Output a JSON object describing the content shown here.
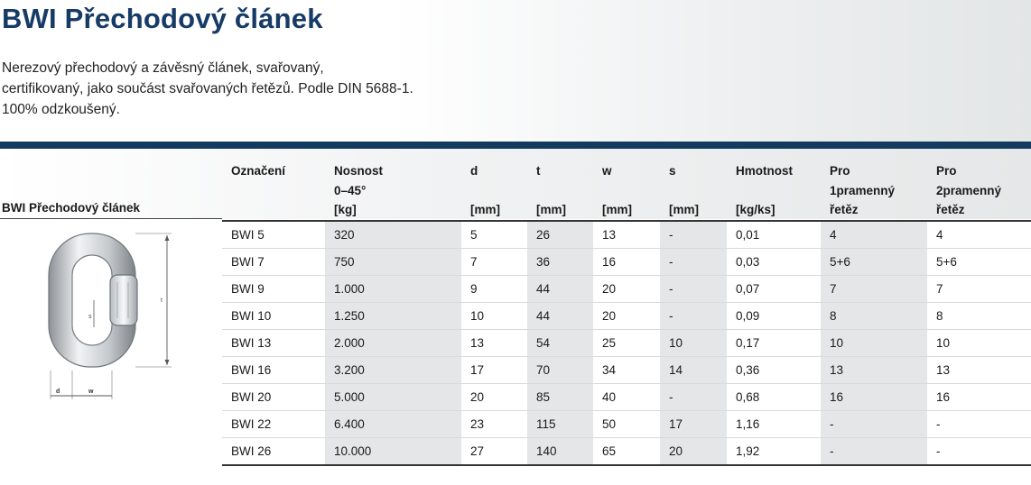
{
  "header": {
    "title": "BWI Přechodový článek",
    "description_lines": [
      "Nerezový přechodový a závěsný článek, svařovaný,",
      "certifikovaný, jako součást svařovaných řetězů. Podle DIN 5688-1.",
      "100% odzkoušený."
    ]
  },
  "product": {
    "label": "BWI Přechodový článek",
    "image_icon": "chain-link-drawing",
    "dim_labels": {
      "t": "t",
      "s": "s",
      "d": "d",
      "w": "w"
    }
  },
  "table": {
    "columns": [
      [
        "Označení",
        "",
        ""
      ],
      [
        "Nosnost",
        "0–45°",
        "[kg]"
      ],
      [
        "d",
        "",
        "[mm]"
      ],
      [
        "t",
        "",
        "[mm]"
      ],
      [
        "w",
        "",
        "[mm]"
      ],
      [
        "s",
        "",
        "[mm]"
      ],
      [
        "Hmotnost",
        "",
        "[kg/ks]"
      ],
      [
        "Pro",
        "1pramenný",
        "řetěz"
      ],
      [
        "Pro",
        "2pramenný",
        "řetěz"
      ]
    ],
    "rows": [
      [
        "BWI 5",
        "320",
        "5",
        "26",
        "13",
        "-",
        "0,01",
        "4",
        "4"
      ],
      [
        "BWI 7",
        "750",
        "7",
        "36",
        "16",
        "-",
        "0,03",
        "5+6",
        "5+6"
      ],
      [
        "BWI 9",
        "1.000",
        "9",
        "44",
        "20",
        "-",
        "0,07",
        "7",
        "7"
      ],
      [
        "BWI 10",
        "1.250",
        "10",
        "44",
        "20",
        "-",
        "0,09",
        "8",
        "8"
      ],
      [
        "BWI 13",
        "2.000",
        "13",
        "54",
        "25",
        "10",
        "0,17",
        "10",
        "10"
      ],
      [
        "BWI 16",
        "3.200",
        "17",
        "70",
        "34",
        "14",
        "0,36",
        "13",
        "13"
      ],
      [
        "BWI 20",
        "5.000",
        "20",
        "85",
        "40",
        "-",
        "0,68",
        "16",
        "16"
      ],
      [
        "BWI 22",
        "6.400",
        "23",
        "115",
        "50",
        "17",
        "1,16",
        "-",
        "-"
      ],
      [
        "BWI 26",
        "10.000",
        "27",
        "140",
        "65",
        "20",
        "1,92",
        "-",
        "-"
      ]
    ]
  },
  "colors": {
    "title": "#163b66",
    "bar": "#133a5f",
    "shaded_column": "#e4e6e7"
  }
}
